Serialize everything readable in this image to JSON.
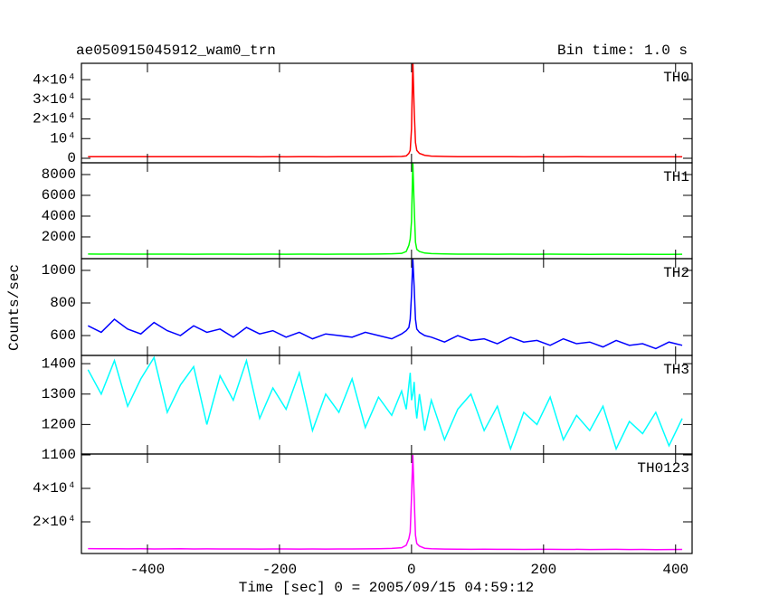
{
  "title": "ae050915045912_wam0_trn",
  "bin_time": "Bin time: 1.0 s",
  "ylabel": "Counts/sec",
  "xlabel": "Time [sec] 0 = 2005/09/15 04:59:12",
  "chart_data": [
    {
      "type": "line",
      "label": "TH0",
      "color": "#ff0000",
      "xlim": [
        -500,
        425
      ],
      "ylim": [
        -2300,
        48300
      ],
      "yticks": [
        0,
        {
          "value": 10000,
          "label": "10⁴"
        },
        {
          "value": 20000,
          "label": "2×10⁴"
        },
        {
          "value": 30000,
          "label": "3×10⁴"
        },
        {
          "value": 40000,
          "label": "4×10⁴"
        }
      ],
      "x": [
        -490,
        -470,
        -450,
        -430,
        -410,
        -390,
        -370,
        -350,
        -330,
        -310,
        -290,
        -270,
        -250,
        -230,
        -210,
        -190,
        -170,
        -150,
        -130,
        -110,
        -90,
        -70,
        -50,
        -30,
        -15,
        -8,
        -4,
        -2,
        0,
        2,
        4,
        6,
        8,
        12,
        20,
        30,
        50,
        70,
        90,
        110,
        130,
        150,
        170,
        190,
        210,
        230,
        250,
        270,
        290,
        310,
        330,
        350,
        370,
        390,
        410
      ],
      "values": [
        820,
        790,
        810,
        800,
        780,
        805,
        795,
        790,
        800,
        785,
        790,
        780,
        795,
        770,
        785,
        775,
        790,
        780,
        770,
        780,
        790,
        800,
        820,
        850,
        900,
        1200,
        2500,
        4000,
        15000,
        50000,
        25000,
        8000,
        4000,
        2500,
        1500,
        1100,
        900,
        820,
        800,
        790,
        780,
        790,
        770,
        780,
        775,
        770,
        780,
        760,
        770,
        765,
        760,
        770,
        755,
        760,
        765
      ]
    },
    {
      "type": "line",
      "label": "TH1",
      "color": "#00ff00",
      "xlim": [
        -500,
        425
      ],
      "ylim": [
        -90,
        9130
      ],
      "yticks": [
        2000,
        4000,
        6000,
        8000
      ],
      "x": [
        -490,
        -470,
        -450,
        -430,
        -410,
        -390,
        -370,
        -350,
        -330,
        -310,
        -290,
        -270,
        -250,
        -230,
        -210,
        -190,
        -170,
        -150,
        -130,
        -110,
        -90,
        -70,
        -50,
        -30,
        -15,
        -8,
        -4,
        -2,
        0,
        2,
        4,
        6,
        8,
        12,
        20,
        30,
        50,
        70,
        90,
        110,
        130,
        150,
        170,
        190,
        210,
        230,
        250,
        270,
        290,
        310,
        330,
        350,
        370,
        390,
        410
      ],
      "values": [
        360,
        340,
        355,
        345,
        350,
        340,
        345,
        350,
        335,
        345,
        340,
        350,
        335,
        345,
        340,
        335,
        345,
        340,
        335,
        340,
        345,
        350,
        360,
        380,
        420,
        600,
        1200,
        1800,
        3500,
        9200,
        5000,
        1500,
        800,
        600,
        450,
        400,
        370,
        350,
        345,
        340,
        335,
        340,
        330,
        335,
        340,
        330,
        335,
        325,
        330,
        335,
        325,
        330,
        320,
        325,
        330
      ]
    },
    {
      "type": "line",
      "label": "TH2",
      "color": "#0000ff",
      "xlim": [
        -500,
        425
      ],
      "ylim": [
        478,
        1072
      ],
      "yticks": [
        600,
        800,
        1000
      ],
      "x": [
        -490,
        -470,
        -450,
        -430,
        -410,
        -390,
        -370,
        -350,
        -330,
        -310,
        -290,
        -270,
        -250,
        -230,
        -210,
        -190,
        -170,
        -150,
        -130,
        -110,
        -90,
        -70,
        -50,
        -30,
        -15,
        -8,
        -4,
        -2,
        0,
        2,
        4,
        6,
        8,
        12,
        20,
        30,
        50,
        70,
        90,
        110,
        130,
        150,
        170,
        190,
        210,
        230,
        250,
        270,
        290,
        310,
        330,
        350,
        370,
        390,
        410
      ],
      "values": [
        660,
        620,
        700,
        640,
        610,
        680,
        630,
        600,
        660,
        620,
        640,
        590,
        650,
        610,
        630,
        590,
        620,
        580,
        610,
        600,
        590,
        620,
        600,
        580,
        610,
        630,
        650,
        700,
        850,
        1070,
        900,
        700,
        640,
        620,
        600,
        590,
        560,
        600,
        570,
        580,
        550,
        590,
        560,
        570,
        540,
        580,
        550,
        560,
        530,
        570,
        540,
        550,
        520,
        560,
        540
      ]
    },
    {
      "type": "line",
      "label": "TH3",
      "color": "#00ffff",
      "xlim": [
        -500,
        425
      ],
      "ylim": [
        1103,
        1427
      ],
      "yticks": [
        1100,
        1200,
        1300,
        1400
      ],
      "x": [
        -490,
        -470,
        -450,
        -430,
        -410,
        -390,
        -370,
        -350,
        -330,
        -310,
        -290,
        -270,
        -250,
        -230,
        -210,
        -190,
        -170,
        -150,
        -130,
        -110,
        -90,
        -70,
        -50,
        -30,
        -15,
        -8,
        -4,
        -2,
        0,
        2,
        4,
        6,
        8,
        12,
        20,
        30,
        50,
        70,
        90,
        110,
        130,
        150,
        170,
        190,
        210,
        230,
        250,
        270,
        290,
        310,
        330,
        350,
        370,
        390,
        410
      ],
      "values": [
        1380,
        1300,
        1410,
        1260,
        1350,
        1420,
        1240,
        1330,
        1390,
        1200,
        1360,
        1280,
        1410,
        1220,
        1320,
        1250,
        1370,
        1180,
        1300,
        1240,
        1350,
        1190,
        1290,
        1230,
        1310,
        1250,
        1330,
        1370,
        1280,
        1300,
        1340,
        1260,
        1220,
        1300,
        1180,
        1280,
        1150,
        1250,
        1300,
        1180,
        1260,
        1120,
        1240,
        1200,
        1290,
        1150,
        1230,
        1180,
        1260,
        1120,
        1210,
        1170,
        1240,
        1130,
        1220
      ]
    },
    {
      "type": "line",
      "label": "TH0123",
      "color": "#ff00ff",
      "xlim": [
        -500,
        425
      ],
      "ylim": [
        1081,
        60540
      ],
      "yticks": [
        {
          "value": 20000,
          "label": "2×10⁴"
        },
        {
          "value": 40000,
          "label": "4×10⁴"
        }
      ],
      "xticks": [
        -400,
        -200,
        0,
        200,
        400
      ],
      "x": [
        -490,
        -470,
        -450,
        -430,
        -410,
        -390,
        -370,
        -350,
        -330,
        -310,
        -290,
        -270,
        -250,
        -230,
        -210,
        -190,
        -170,
        -150,
        -130,
        -110,
        -90,
        -70,
        -50,
        -30,
        -15,
        -8,
        -4,
        -2,
        0,
        2,
        4,
        6,
        8,
        12,
        20,
        30,
        50,
        70,
        90,
        110,
        130,
        150,
        170,
        190,
        210,
        230,
        250,
        270,
        290,
        310,
        330,
        350,
        370,
        390,
        410
      ],
      "values": [
        4000,
        3900,
        3950,
        3850,
        3900,
        3800,
        3850,
        3900,
        3750,
        3850,
        3800,
        3750,
        3800,
        3700,
        3750,
        3800,
        3700,
        3750,
        3700,
        3750,
        3800,
        3850,
        3950,
        4100,
        4500,
        6000,
        10000,
        14000,
        35000,
        60000,
        35000,
        12000,
        7000,
        5500,
        4200,
        3900,
        3700,
        3650,
        3600,
        3650,
        3550,
        3600,
        3500,
        3550,
        3600,
        3500,
        3550,
        3450,
        3500,
        3550,
        3450,
        3500,
        3400,
        3450,
        3500
      ]
    }
  ]
}
